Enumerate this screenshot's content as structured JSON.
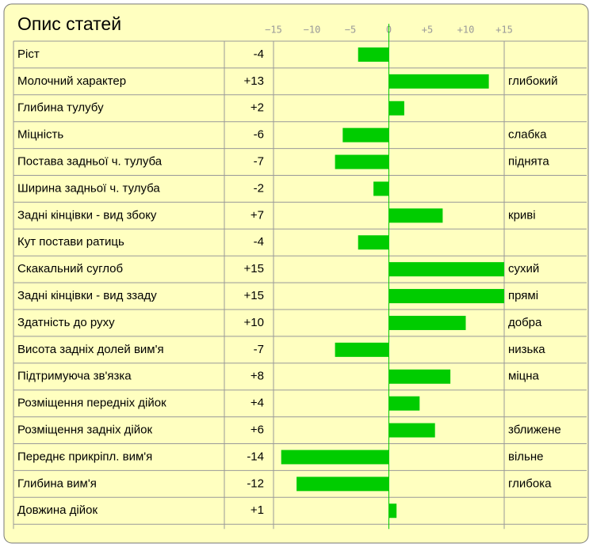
{
  "chart_data": {
    "type": "bar",
    "orientation": "horizontal",
    "title": "Опис статей",
    "categories": [
      "Ріст",
      "Молочний характер",
      "Глибина тулубу",
      "Міцність",
      "Постава задньої ч. тулуба",
      "Ширина задньої ч. тулуба",
      "Задні кінцівки - вид збоку",
      "Кут постави ратиць",
      "Скакальний суглоб",
      "Задні кінцівки - вид ззаду",
      "Здатність до руху",
      "Висота задніх долей вим'я",
      "Підтримуюча зв'язка",
      "Розміщення передніх дійок",
      "Розміщення задніх дійок",
      "Переднє прикріпл. вим'я",
      "Глибина вим'я",
      "Довжина дійок"
    ],
    "values": [
      -4,
      13,
      2,
      -6,
      -7,
      -2,
      7,
      -4,
      15,
      15,
      10,
      -7,
      8,
      4,
      6,
      -14,
      -12,
      1
    ],
    "value_labels": [
      "-4",
      "+13",
      "+2",
      "-6",
      "-7",
      "-2",
      "+7",
      "-4",
      "+15",
      "+15",
      "+10",
      "-7",
      "+8",
      "+4",
      "+6",
      "-14",
      "-12",
      "+1"
    ],
    "annotations": [
      null,
      "глибокий",
      null,
      "слабка",
      "піднята",
      null,
      "криві",
      null,
      "сухий",
      "прямі",
      "добра",
      "низька",
      "міцна",
      null,
      "зближене",
      "вільне",
      "глибока",
      null
    ],
    "color": "#00cc00",
    "xlim": [
      -15,
      15
    ],
    "xticks": [
      {
        "value": -15,
        "label": "−15"
      },
      {
        "value": -10,
        "label": "−10"
      },
      {
        "value": -5,
        "label": "−5"
      },
      0,
      {
        "value": 5,
        "label": "+5"
      },
      {
        "value": 10,
        "label": "+10"
      },
      {
        "value": 15,
        "label": "+15"
      }
    ]
  }
}
